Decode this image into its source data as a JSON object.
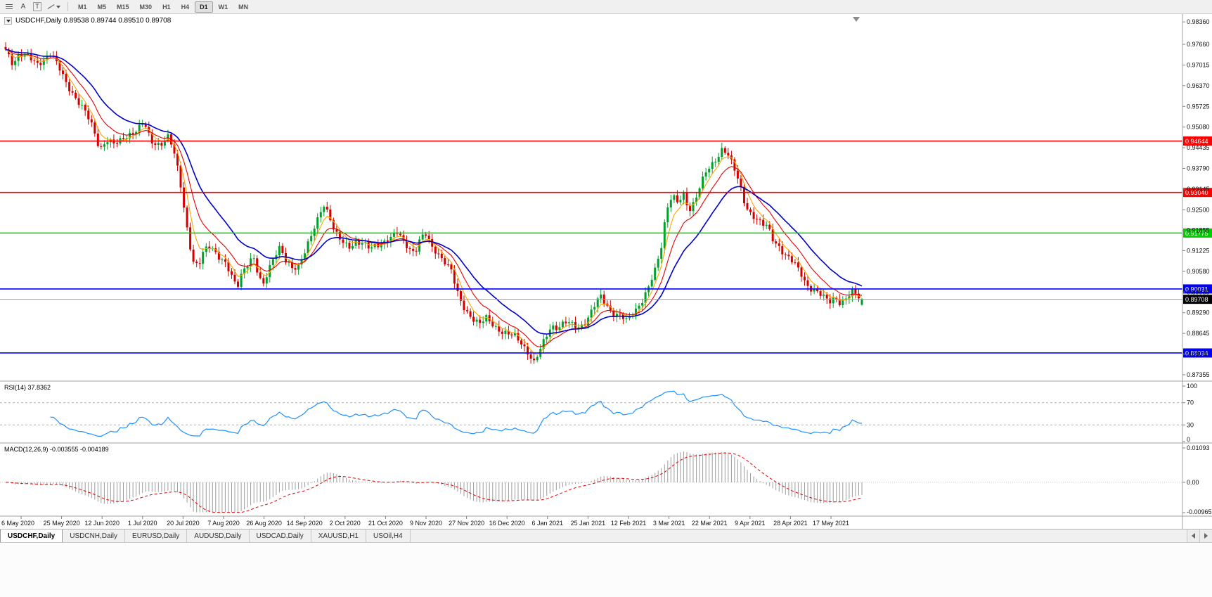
{
  "window": {
    "app": "MetaTrader",
    "active_symbol_period": "USDCHF,Daily"
  },
  "toolbar": {
    "pointer_label": "A",
    "text_label": "T",
    "timeframes": [
      "M1",
      "M5",
      "M15",
      "M30",
      "H1",
      "H4",
      "D1",
      "W1",
      "MN"
    ],
    "active_timeframe": "D1"
  },
  "chart": {
    "title_text": "USDCHF,Daily 0.89538 0.89744 0.89510 0.89708",
    "price_axis_labels": [
      "0.98360",
      "0.97660",
      "0.97015",
      "0.96370",
      "0.95725",
      "0.95080",
      "0.94435",
      "0.93790",
      "0.93145",
      "0.92500",
      "0.91855",
      "0.91225",
      "0.90580",
      "0.89935",
      "0.89290",
      "0.88645",
      "0.88000",
      "0.87355"
    ],
    "hlines": [
      {
        "price": 0.94644,
        "label": "0.94644",
        "color": "#ff0000"
      },
      {
        "price": 0.9304,
        "label": "0.93040",
        "color": "#ff0000"
      },
      {
        "price": 0.91775,
        "label": "0.91775",
        "color": "#00cc00"
      },
      {
        "price": 0.90031,
        "label": "0.90031",
        "color": "#0000ff"
      },
      {
        "price": 0.88034,
        "label": "0.88034",
        "color": "#0000ff"
      }
    ],
    "current_price": 0.89708,
    "current_price_label": "0.89708",
    "dates": [
      "6 May 2020",
      "25 May 2020",
      "12 Jun 2020",
      "1 Jul 2020",
      "20 Jul 2020",
      "7 Aug 2020",
      "26 Aug 2020",
      "14 Sep 2020",
      "2 Oct 2020",
      "21 Oct 2020",
      "9 Nov 2020",
      "27 Nov 2020",
      "16 Dec 2020",
      "6 Jan 2021",
      "25 Jan 2021",
      "12 Feb 2021",
      "3 Mar 2021",
      "22 Mar 2021",
      "9 Apr 2021",
      "28 Apr 2021",
      "17 May 2021"
    ]
  },
  "chart_data": {
    "type": "candlestick",
    "symbol": "USDCHF",
    "timeframe": "Daily",
    "ohlc_last": {
      "open": 0.89538,
      "high": 0.89744,
      "low": 0.8951,
      "close": 0.89708
    },
    "ylim": [
      0.87355,
      0.9836
    ],
    "x_range_dates": [
      "6 May 2020",
      "17 May 2021"
    ],
    "num_candles": 270,
    "horizontal_levels": [
      0.94644,
      0.9304,
      0.91775,
      0.90031,
      0.88034
    ],
    "price_path_anchors": [
      [
        8,
        0.9745
      ],
      [
        18,
        0.9705
      ],
      [
        28,
        0.974
      ],
      [
        40,
        0.9728
      ],
      [
        52,
        0.97
      ],
      [
        62,
        0.9718
      ],
      [
        72,
        0.9742
      ],
      [
        82,
        0.97
      ],
      [
        95,
        0.964
      ],
      [
        108,
        0.96
      ],
      [
        120,
        0.956
      ],
      [
        132,
        0.9505
      ],
      [
        142,
        0.944
      ],
      [
        152,
        0.947
      ],
      [
        163,
        0.9452
      ],
      [
        172,
        0.9465
      ],
      [
        182,
        0.9485
      ],
      [
        195,
        0.95
      ],
      [
        205,
        0.952
      ],
      [
        215,
        0.9462
      ],
      [
        228,
        0.9455
      ],
      [
        240,
        0.9478
      ],
      [
        250,
        0.9408
      ],
      [
        258,
        0.9315
      ],
      [
        266,
        0.9195
      ],
      [
        274,
        0.9092
      ],
      [
        282,
        0.9068
      ],
      [
        290,
        0.9122
      ],
      [
        300,
        0.914
      ],
      [
        310,
        0.9108
      ],
      [
        320,
        0.9082
      ],
      [
        330,
        0.9038
      ],
      [
        337,
        0.9008
      ],
      [
        344,
        0.9058
      ],
      [
        352,
        0.9082
      ],
      [
        360,
        0.9102
      ],
      [
        368,
        0.9038
      ],
      [
        374,
        0.9012
      ],
      [
        382,
        0.9068
      ],
      [
        390,
        0.9108
      ],
      [
        398,
        0.9132
      ],
      [
        406,
        0.9088
      ],
      [
        415,
        0.9068
      ],
      [
        424,
        0.9075
      ],
      [
        433,
        0.9118
      ],
      [
        442,
        0.9162
      ],
      [
        452,
        0.9218
      ],
      [
        460,
        0.927
      ],
      [
        468,
        0.9238
      ],
      [
        476,
        0.9182
      ],
      [
        486,
        0.9148
      ],
      [
        496,
        0.9132
      ],
      [
        506,
        0.9152
      ],
      [
        516,
        0.9148
      ],
      [
        526,
        0.9126
      ],
      [
        536,
        0.9138
      ],
      [
        546,
        0.9152
      ],
      [
        556,
        0.9165
      ],
      [
        566,
        0.9178
      ],
      [
        574,
        0.9148
      ],
      [
        582,
        0.9132
      ],
      [
        590,
        0.9118
      ],
      [
        598,
        0.9162
      ],
      [
        606,
        0.9172
      ],
      [
        614,
        0.9132
      ],
      [
        622,
        0.9118
      ],
      [
        632,
        0.9092
      ],
      [
        642,
        0.9058
      ],
      [
        650,
        0.8992
      ],
      [
        658,
        0.8952
      ],
      [
        666,
        0.8928
      ],
      [
        674,
        0.8908
      ],
      [
        682,
        0.8892
      ],
      [
        692,
        0.8912
      ],
      [
        702,
        0.8892
      ],
      [
        712,
        0.8872
      ],
      [
        722,
        0.886
      ],
      [
        732,
        0.8856
      ],
      [
        742,
        0.8836
      ],
      [
        752,
        0.8802
      ],
      [
        760,
        0.877
      ],
      [
        768,
        0.881
      ],
      [
        776,
        0.8852
      ],
      [
        784,
        0.889
      ],
      [
        794,
        0.8882
      ],
      [
        804,
        0.8898
      ],
      [
        814,
        0.8892
      ],
      [
        824,
        0.8886
      ],
      [
        834,
        0.8902
      ],
      [
        844,
        0.8942
      ],
      [
        854,
        0.8982
      ],
      [
        862,
        0.8958
      ],
      [
        872,
        0.8926
      ],
      [
        882,
        0.8918
      ],
      [
        892,
        0.8902
      ],
      [
        902,
        0.8935
      ],
      [
        912,
        0.8962
      ],
      [
        922,
        0.9002
      ],
      [
        932,
        0.9062
      ],
      [
        940,
        0.9128
      ],
      [
        948,
        0.9252
      ],
      [
        956,
        0.9298
      ],
      [
        964,
        0.9268
      ],
      [
        972,
        0.9295
      ],
      [
        980,
        0.9248
      ],
      [
        988,
        0.928
      ],
      [
        996,
        0.9328
      ],
      [
        1004,
        0.9365
      ],
      [
        1012,
        0.9385
      ],
      [
        1020,
        0.9412
      ],
      [
        1028,
        0.9446
      ],
      [
        1036,
        0.9422
      ],
      [
        1044,
        0.9378
      ],
      [
        1052,
        0.9328
      ],
      [
        1060,
        0.9265
      ],
      [
        1068,
        0.924
      ],
      [
        1076,
        0.9222
      ],
      [
        1084,
        0.9203
      ],
      [
        1092,
        0.9196
      ],
      [
        1100,
        0.9156
      ],
      [
        1108,
        0.9138
      ],
      [
        1116,
        0.911
      ],
      [
        1124,
        0.9093
      ],
      [
        1132,
        0.9076
      ],
      [
        1140,
        0.905
      ],
      [
        1148,
        0.9016
      ],
      [
        1156,
        0.9
      ],
      [
        1164,
        0.8988
      ],
      [
        1172,
        0.8976
      ],
      [
        1180,
        0.8966
      ],
      [
        1188,
        0.898
      ],
      [
        1196,
        0.8956
      ],
      [
        1204,
        0.897
      ],
      [
        1212,
        0.8993
      ],
      [
        1220,
        0.8986
      ],
      [
        1226,
        0.8971
      ]
    ],
    "indicators": {
      "moving_averages": [
        {
          "type": "ema",
          "period": 5,
          "color": "#ffa500"
        },
        {
          "type": "ema",
          "period": 11,
          "color": "#e60000"
        },
        {
          "type": "ema",
          "period": 22,
          "color": "#0000c8"
        }
      ],
      "rsi": {
        "label": "RSI(14) 37.8362",
        "period": 14,
        "last_value": 37.8362,
        "levels": [
          70,
          30
        ],
        "axis_labels": [
          "100",
          "70",
          "30",
          "0"
        ],
        "range": [
          0,
          100
        ]
      },
      "macd": {
        "label": "MACD(12,26,9) -0.003555 -0.004189",
        "fast": 12,
        "slow": 26,
        "signal_period": 9,
        "last_main": -0.003555,
        "last_signal": -0.004189,
        "axis_labels": [
          "0.01093",
          "0.00",
          "-0.00965"
        ],
        "axis_max": 0.01093,
        "axis_min": -0.00965
      }
    }
  },
  "tabs": {
    "items": [
      "USDCHF,Daily",
      "USDCNH,Daily",
      "EURUSD,Daily",
      "AUDUSD,Daily",
      "USDCAD,Daily",
      "XAUUSD,H1",
      "USOil,H4"
    ],
    "active": "USDCHF,Daily"
  },
  "colors": {
    "candle_up": "#00a12b",
    "candle_down": "#d40000",
    "hline_red": "#ff0000",
    "hline_green": "#00cc00",
    "hline_blue": "#0000ff",
    "current_line": "#9a9a9a",
    "current_tag_bg": "#000000",
    "rsi_line": "#1e90ff",
    "macd_hist": "#9c9c9c",
    "macd_signal": "#e00000",
    "axis_text": "#111111",
    "separator": "#a0a0a0"
  }
}
